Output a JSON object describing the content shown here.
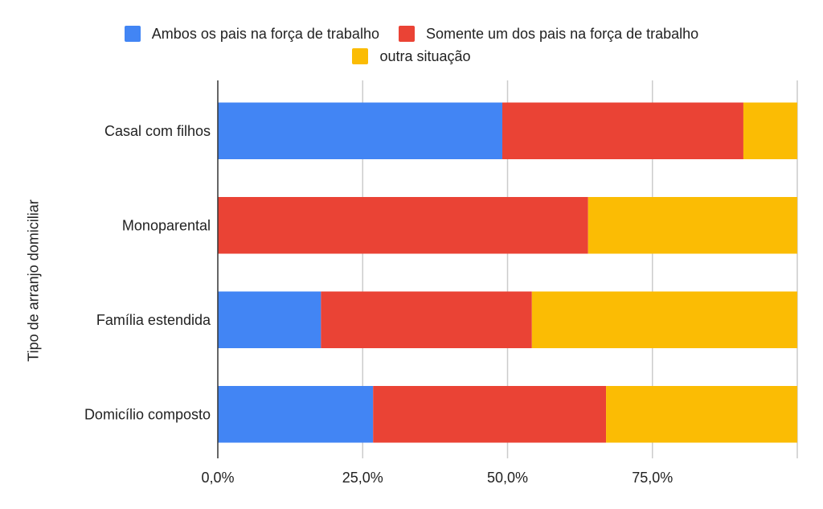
{
  "chart_data": {
    "type": "bar",
    "orientation": "horizontal",
    "stacked": "percent",
    "title": "",
    "xlabel": "",
    "ylabel": "Tipo de arranjo domiciliar",
    "categories": [
      "Casal com filhos",
      "Monoparental",
      "Família estendida",
      "Domicílio composto"
    ],
    "series": [
      {
        "name": "Ambos os pais na força de trabalho",
        "color": "#4285f4",
        "values": [
          49.1,
          0.0,
          17.8,
          26.8
        ]
      },
      {
        "name": "Somente um dos pais na força de trabalho",
        "color": "#ea4335",
        "values": [
          41.6,
          63.9,
          36.4,
          40.2
        ]
      },
      {
        "name": "outra situação",
        "color": "#fbbc04",
        "values": [
          9.3,
          36.1,
          45.8,
          33.0
        ]
      }
    ],
    "xlim": [
      0,
      100
    ],
    "xticks": [
      0,
      25,
      50,
      75,
      100
    ],
    "xtick_labels": [
      "0,0%",
      "25,0%",
      "50,0%",
      "75,0%",
      ""
    ],
    "grid": true,
    "legend_position": "top"
  }
}
